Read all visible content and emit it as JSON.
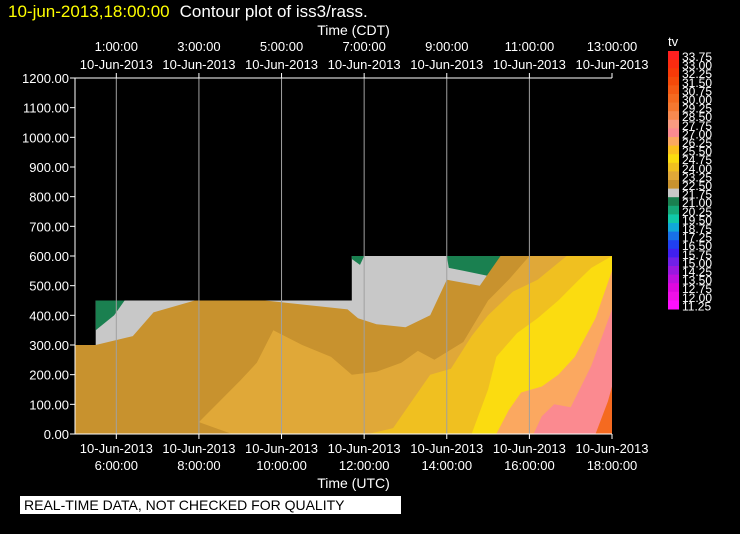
{
  "header": {
    "date_stamp": "10-jun-2013,18:00:00",
    "plot_title": "Contour plot of iss3/rass."
  },
  "footer": {
    "disclaimer": "REAL-TIME DATA, NOT CHECKED FOR QUALITY"
  },
  "colors": {
    "background": "#000000",
    "axis": "#ffffff",
    "grid": "#a0a0a0",
    "no_data": "#000000"
  },
  "chart_data": {
    "type": "heatmap",
    "variable": "tv",
    "x_axis_bottom": {
      "label": "Time (UTC)",
      "range_hours": [
        5.0,
        18.0
      ],
      "ticks": [
        {
          "hour": 6,
          "date": "10-Jun-2013",
          "time": "6:00:00"
        },
        {
          "hour": 8,
          "date": "10-Jun-2013",
          "time": "8:00:00"
        },
        {
          "hour": 10,
          "date": "10-Jun-2013",
          "time": "10:00:00"
        },
        {
          "hour": 12,
          "date": "10-Jun-2013",
          "time": "12:00:00"
        },
        {
          "hour": 14,
          "date": "10-Jun-2013",
          "time": "14:00:00"
        },
        {
          "hour": 16,
          "date": "10-Jun-2013",
          "time": "16:00:00"
        },
        {
          "hour": 18,
          "date": "10-Jun-2013",
          "time": "18:00:00"
        }
      ]
    },
    "x_axis_top": {
      "label": "Time (CDT)",
      "ticks": [
        {
          "hour": 6,
          "time": "1:00:00",
          "date": "10-Jun-2013"
        },
        {
          "hour": 8,
          "time": "3:00:00",
          "date": "10-Jun-2013"
        },
        {
          "hour": 10,
          "time": "5:00:00",
          "date": "10-Jun-2013"
        },
        {
          "hour": 12,
          "time": "7:00:00",
          "date": "10-Jun-2013"
        },
        {
          "hour": 14,
          "time": "9:00:00",
          "date": "10-Jun-2013"
        },
        {
          "hour": 16,
          "time": "11:00:00",
          "date": "10-Jun-2013"
        },
        {
          "hour": 18,
          "time": "13:00:00",
          "date": "10-Jun-2013"
        }
      ]
    },
    "y_axis": {
      "range": [
        0,
        1200
      ],
      "ticks": [
        {
          "value": 0,
          "label": "0.00"
        },
        {
          "value": 100,
          "label": "100.00"
        },
        {
          "value": 200,
          "label": "200.00"
        },
        {
          "value": 300,
          "label": "300.00"
        },
        {
          "value": 400,
          "label": "400.00"
        },
        {
          "value": 500,
          "label": "500.00"
        },
        {
          "value": 600,
          "label": "600.00"
        },
        {
          "value": 700,
          "label": "700.00"
        },
        {
          "value": 800,
          "label": "800.00"
        },
        {
          "value": 900,
          "label": "900.00"
        },
        {
          "value": 1000,
          "label": "1000.00"
        },
        {
          "value": 1100,
          "label": "1100.00"
        },
        {
          "value": 1200,
          "label": "1200.00"
        }
      ]
    },
    "grid": true,
    "legend": {
      "title": "tv",
      "placement": "right",
      "levels": [
        {
          "label": "33.75",
          "color": "#ff2020"
        },
        {
          "label": "33.00",
          "color": "#fb2c10"
        },
        {
          "label": "32.25",
          "color": "#f73a08"
        },
        {
          "label": "31.50",
          "color": "#f54a0a"
        },
        {
          "label": "30.75",
          "color": "#f55a14"
        },
        {
          "label": "30.00",
          "color": "#f56a20"
        },
        {
          "label": "29.25",
          "color": "#f57830"
        },
        {
          "label": "28.50",
          "color": "#f78a50"
        },
        {
          "label": "27.75",
          "color": "#f99a80"
        },
        {
          "label": "27.00",
          "color": "#fb8a90"
        },
        {
          "label": "26.25",
          "color": "#fba860"
        },
        {
          "label": "25.50",
          "color": "#fbc020"
        },
        {
          "label": "24.75",
          "color": "#fbdc10"
        },
        {
          "label": "24.00",
          "color": "#f0c020"
        },
        {
          "label": "23.25",
          "color": "#e0a838"
        },
        {
          "label": "22.50",
          "color": "#c8922e"
        },
        {
          "label": "21.75",
          "color": "#c8c8c8"
        },
        {
          "label": "21.00",
          "color": "#1a8050"
        },
        {
          "label": "20.25",
          "color": "#16a878"
        },
        {
          "label": "19.50",
          "color": "#10c8a8"
        },
        {
          "label": "18.75",
          "color": "#10a8d8"
        },
        {
          "label": "17.25",
          "color": "#1870e8"
        },
        {
          "label": "16.50",
          "color": "#2040f0"
        },
        {
          "label": "15.75",
          "color": "#4020f0"
        },
        {
          "label": "15.00",
          "color": "#7020e8"
        },
        {
          "label": "14.25",
          "color": "#9a18e0"
        },
        {
          "label": "13.50",
          "color": "#c010e0"
        },
        {
          "label": "12.75",
          "color": "#e008e0"
        },
        {
          "label": "12.00",
          "color": "#f010e8"
        },
        {
          "label": "11.25",
          "color": "#ff10ff"
        }
      ]
    },
    "regions": [
      {
        "name": "tv-22.50-band",
        "color": "#c8c8c8",
        "points": [
          [
            5.0,
            300
          ],
          [
            5.5,
            300
          ],
          [
            5.5,
            450
          ],
          [
            11.7,
            450
          ],
          [
            11.7,
            600
          ],
          [
            18.0,
            600
          ],
          [
            18.0,
            0
          ],
          [
            5.0,
            0
          ]
        ]
      },
      {
        "name": "tv-21.00-band-left",
        "color": "#1a8050",
        "points": [
          [
            5.5,
            450
          ],
          [
            6.2,
            450
          ],
          [
            5.95,
            400
          ],
          [
            5.5,
            350
          ]
        ]
      },
      {
        "name": "tv-21.00-band-right",
        "color": "#1a8050",
        "points": [
          [
            11.7,
            600
          ],
          [
            12.0,
            600
          ],
          [
            11.9,
            570
          ],
          [
            11.7,
            590
          ]
        ]
      },
      {
        "name": "tv-21.00-band-upper",
        "color": "#1a8050",
        "points": [
          [
            14.0,
            600
          ],
          [
            15.5,
            600
          ],
          [
            15.1,
            530
          ],
          [
            14.4,
            550
          ],
          [
            14.05,
            560
          ]
        ]
      },
      {
        "name": "tv-22.50-orange-band",
        "color": "#c8922e",
        "points": [
          [
            5.0,
            300
          ],
          [
            5.5,
            300
          ],
          [
            6.4,
            330
          ],
          [
            6.9,
            410
          ],
          [
            7.9,
            450
          ],
          [
            9.6,
            450
          ],
          [
            11.6,
            420
          ],
          [
            11.85,
            390
          ],
          [
            12.3,
            370
          ],
          [
            13.0,
            360
          ],
          [
            13.6,
            400
          ],
          [
            14.0,
            520
          ],
          [
            14.8,
            500
          ],
          [
            15.3,
            600
          ],
          [
            18.0,
            600
          ],
          [
            18.0,
            0
          ],
          [
            5.0,
            0
          ]
        ]
      },
      {
        "name": "tv-23.25-band",
        "color": "#e0a838",
        "points": [
          [
            9.8,
            350
          ],
          [
            10.5,
            300
          ],
          [
            11.2,
            260
          ],
          [
            11.7,
            200
          ],
          [
            12.3,
            210
          ],
          [
            12.9,
            240
          ],
          [
            13.3,
            280
          ],
          [
            13.7,
            250
          ],
          [
            14.4,
            310
          ],
          [
            15.0,
            450
          ],
          [
            15.5,
            520
          ],
          [
            16.0,
            600
          ],
          [
            18.0,
            600
          ],
          [
            18.0,
            0
          ],
          [
            8.8,
            0
          ],
          [
            8.0,
            40
          ],
          [
            9.0,
            180
          ],
          [
            9.4,
            240
          ]
        ]
      },
      {
        "name": "tv-24.75-band",
        "color": "#f0c020",
        "points": [
          [
            12.1,
            0
          ],
          [
            12.7,
            20
          ],
          [
            13.2,
            120
          ],
          [
            13.6,
            200
          ],
          [
            14.1,
            220
          ],
          [
            14.6,
            330
          ],
          [
            15.0,
            400
          ],
          [
            15.6,
            480
          ],
          [
            16.2,
            520
          ],
          [
            16.9,
            600
          ],
          [
            18.0,
            600
          ],
          [
            18.0,
            0
          ]
        ]
      },
      {
        "name": "tv-25.50-band",
        "color": "#fbdc10",
        "points": [
          [
            14.6,
            0
          ],
          [
            15.0,
            150
          ],
          [
            15.2,
            260
          ],
          [
            15.7,
            340
          ],
          [
            16.2,
            390
          ],
          [
            16.7,
            450
          ],
          [
            17.2,
            520
          ],
          [
            17.5,
            560
          ],
          [
            18.0,
            600
          ],
          [
            18.0,
            0
          ]
        ]
      },
      {
        "name": "tv-26.25-band",
        "color": "#fba860",
        "points": [
          [
            15.2,
            0
          ],
          [
            15.5,
            80
          ],
          [
            15.8,
            140
          ],
          [
            16.3,
            160
          ],
          [
            16.7,
            200
          ],
          [
            17.1,
            260
          ],
          [
            17.6,
            390
          ],
          [
            18.0,
            550
          ],
          [
            18.0,
            0
          ]
        ]
      },
      {
        "name": "tv-27.00-band",
        "color": "#fb8a90",
        "points": [
          [
            16.1,
            0
          ],
          [
            16.3,
            60
          ],
          [
            16.6,
            100
          ],
          [
            17.0,
            90
          ],
          [
            17.5,
            230
          ],
          [
            18.0,
            420
          ],
          [
            18.0,
            0
          ]
        ]
      },
      {
        "name": "tv-28.50-band",
        "color": "#f56a20",
        "points": [
          [
            17.6,
            0
          ],
          [
            17.9,
            110
          ],
          [
            18.0,
            160
          ],
          [
            18.0,
            0
          ]
        ]
      }
    ]
  }
}
